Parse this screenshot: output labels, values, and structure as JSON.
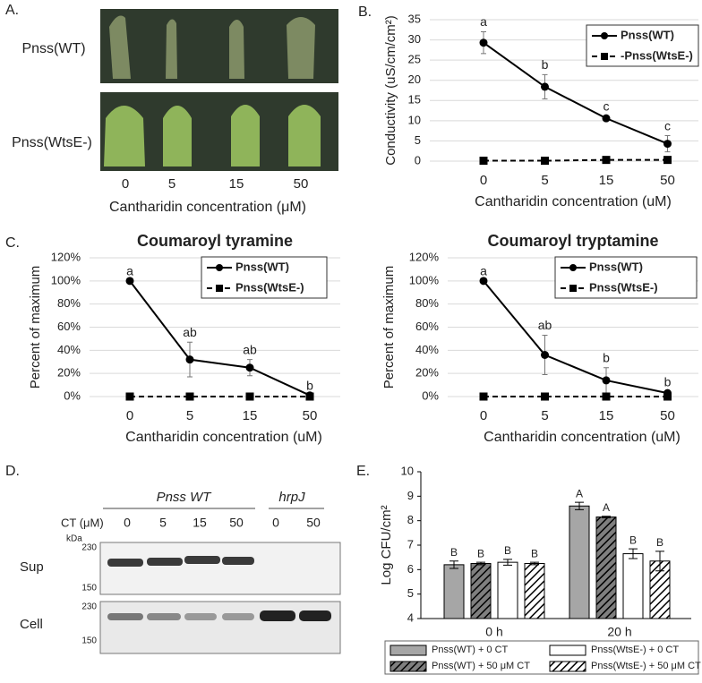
{
  "panel_labels": [
    "A.",
    "B.",
    "C.",
    "D.",
    "E."
  ],
  "photo": {
    "rows": [
      "Pnss(WT)",
      "Pnss(WtsE-)"
    ],
    "concentrations": [
      "0",
      "5",
      "15",
      "50"
    ],
    "xlabel": "Cantharidin concentration (μM)"
  },
  "blot": {
    "groups": [
      "Pnss WT",
      "hrpJ"
    ],
    "ct_label": "CT (μM)",
    "lanes": [
      "0",
      "5",
      "15",
      "50",
      "0",
      "50"
    ],
    "kda": "kDa",
    "rows": [
      "Sup",
      "Cell"
    ],
    "markers": [
      "230",
      "150",
      "230",
      "150"
    ]
  },
  "chart_data": [
    {
      "type": "line",
      "ylabel": "Conductivity (uS/cm/cm²)",
      "xlabel": "Cantharidin concentration (uM)",
      "categories": [
        "0",
        "5",
        "15",
        "50"
      ],
      "ylim": [
        0,
        35
      ],
      "yticks": [
        0,
        5,
        10,
        15,
        20,
        25,
        30,
        35
      ],
      "grid": true,
      "series": [
        {
          "name": "Pnss(WT)",
          "color": "#000000",
          "marker": "circle",
          "dashed": false,
          "values": [
            29.3,
            18.4,
            10.6,
            4.3
          ],
          "errors": [
            2.7,
            3,
            0.5,
            2
          ],
          "letters": [
            "a",
            "b",
            "c",
            "c"
          ]
        },
        {
          "name": "-Pnss(WtsE-)",
          "color": "#000000",
          "marker": "square",
          "dashed": true,
          "values": [
            0.1,
            0.1,
            0.3,
            0.3
          ],
          "errors": [
            0,
            0,
            0,
            0
          ]
        }
      ]
    },
    {
      "type": "line",
      "title": "Coumaroyl tyramine",
      "ylabel": "Percent of maximum",
      "xlabel": "Cantharidin concentration (uM)",
      "categories": [
        "0",
        "5",
        "15",
        "50"
      ],
      "ylim": [
        0,
        120
      ],
      "yticks": [
        {
          "value": 0,
          "label": "0%"
        },
        {
          "value": 20,
          "label": "20%"
        },
        {
          "value": 40,
          "label": "40%"
        },
        {
          "value": 60,
          "label": "60%"
        },
        {
          "value": 80,
          "label": "80%"
        },
        {
          "value": 100,
          "label": "100%"
        },
        {
          "value": 120,
          "label": "120%"
        }
      ],
      "grid": true,
      "series": [
        {
          "name": "Pnss(WT)",
          "color": "#000000",
          "marker": "circle",
          "dashed": false,
          "values": [
            100,
            32,
            25,
            1
          ],
          "errors": [
            0,
            15,
            7,
            0
          ],
          "letters": [
            "a",
            "ab",
            "ab",
            "b"
          ]
        },
        {
          "name": "Pnss(WtsE-)",
          "color": "#000000",
          "marker": "square",
          "dashed": true,
          "values": [
            0,
            0,
            0,
            0
          ],
          "errors": [
            0,
            0,
            0,
            0
          ]
        }
      ]
    },
    {
      "type": "line",
      "title": "Coumaroyl tryptamine",
      "ylabel": "Percent of maximum",
      "xlabel": "Cantharidin concentration (uM)",
      "categories": [
        "0",
        "5",
        "15",
        "50"
      ],
      "ylim": [
        0,
        120
      ],
      "yticks": [
        {
          "value": 0,
          "label": "0%"
        },
        {
          "value": 20,
          "label": "20%"
        },
        {
          "value": 40,
          "label": "40%"
        },
        {
          "value": 60,
          "label": "60%"
        },
        {
          "value": 80,
          "label": "80%"
        },
        {
          "value": 100,
          "label": "100%"
        },
        {
          "value": 120,
          "label": "120%"
        }
      ],
      "grid": true,
      "series": [
        {
          "name": "Pnss(WT)",
          "color": "#000000",
          "marker": "circle",
          "dashed": false,
          "values": [
            100,
            36,
            14,
            3
          ],
          "errors": [
            0,
            17,
            11,
            1
          ],
          "letters": [
            "a",
            "ab",
            "b",
            "b"
          ]
        },
        {
          "name": "Pnss(WtsE-)",
          "color": "#000000",
          "marker": "square",
          "dashed": true,
          "values": [
            0,
            0,
            0,
            0
          ],
          "errors": [
            0,
            0,
            0,
            0
          ]
        }
      ]
    },
    {
      "type": "bar",
      "ylabel": "Log CFU/cm²",
      "categories": [
        "0 h",
        "20 h"
      ],
      "ylim": [
        4,
        10
      ],
      "yticks": [
        4,
        5,
        6,
        7,
        8,
        9,
        10
      ],
      "grid": false,
      "series": [
        {
          "name": "Pnss(WT) + 0 CT",
          "color": "#a6a6a6",
          "hatch": false,
          "values": [
            6.2,
            8.6
          ],
          "errors": [
            0.15,
            0.15
          ],
          "letters": [
            "B",
            "A"
          ]
        },
        {
          "name": "Pnss(WT) + 50 μM CT",
          "color": "#7f7f7f",
          "hatch": true,
          "values": [
            6.25,
            8.15
          ],
          "errors": [
            0.05,
            0.03
          ],
          "letters": [
            "B",
            "A"
          ]
        },
        {
          "name": "Pnss(WtsE-) + 0 CT",
          "color": "#ffffff",
          "hatch": false,
          "values": [
            6.3,
            6.65
          ],
          "errors": [
            0.12,
            0.2
          ],
          "letters": [
            "B",
            "B"
          ]
        },
        {
          "name": "Pnss(WtsE-) + 50 μM CT",
          "color": "#ffffff",
          "hatch": true,
          "values": [
            6.25,
            6.35
          ],
          "errors": [
            0.05,
            0.4
          ],
          "letters": [
            "B",
            "B"
          ]
        }
      ]
    }
  ]
}
